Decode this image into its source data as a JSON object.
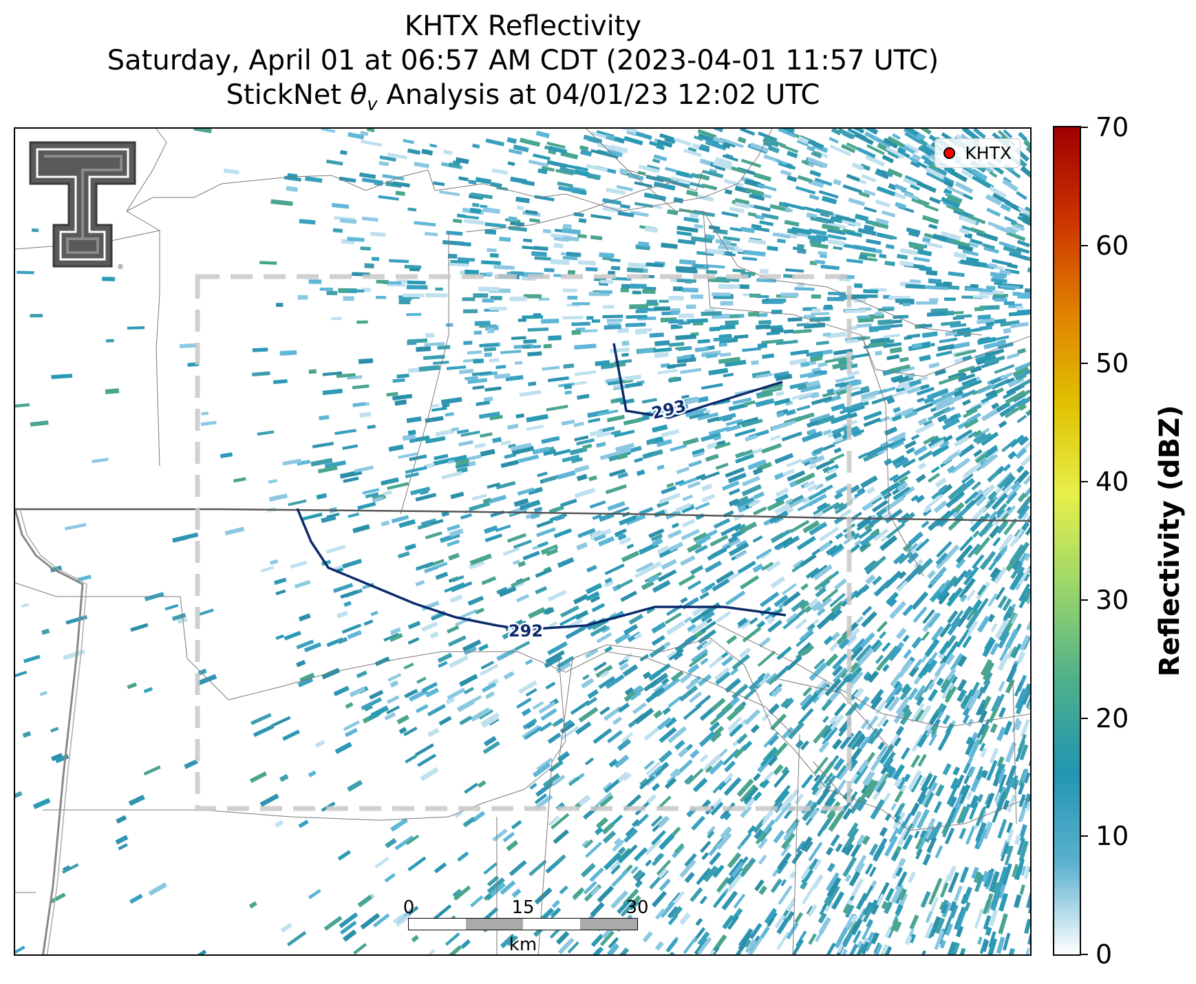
{
  "title": {
    "line1": "KHTX Reflectivity",
    "line2": "Saturday, April 01 at 06:57 AM CDT (2023-04-01 11:57 UTC)",
    "line3_pre": "StickNet ",
    "line3_theta": "θ",
    "line3_sub": "v",
    "line3_post": " Analysis at 04/01/23 12:02 UTC"
  },
  "legend": {
    "label": "KHTX",
    "marker_color": "#ff0000"
  },
  "logo": {
    "name": "Texas Tech Double T",
    "registered_mark": "®"
  },
  "contours": [
    {
      "label": "293",
      "color": "#0b2a6b"
    },
    {
      "label": "292",
      "color": "#0b2a6b"
    }
  ],
  "scale_bar": {
    "ticks": [
      "0",
      "15",
      "30"
    ],
    "unit": "km"
  },
  "colorbar": {
    "title": "Reflectivity (dBZ)",
    "ticks": [
      "0",
      "10",
      "20",
      "30",
      "40",
      "50",
      "60",
      "70"
    ],
    "colors": [
      "#ffffff",
      "#5ab0d0",
      "#2196b0",
      "#4fb08a",
      "#9ad66a",
      "#e6f04a",
      "#e0c000",
      "#e08000",
      "#cc3300",
      "#a00000"
    ]
  },
  "analysis_box": {
    "color": "#c8c8c8",
    "style": "dashed"
  }
}
